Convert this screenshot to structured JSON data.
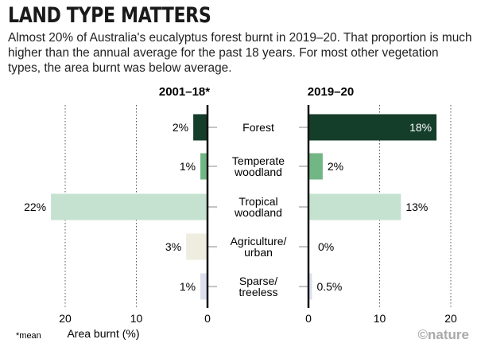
{
  "chart_data": {
    "type": "bar",
    "title": "LAND TYPE MATTERS",
    "subtitle": "Almost 20% of Australia's eucalyptus forest burnt in 2019–20. That proportion is much higher than the annual average for the past 18 years. For most other vegetation types, the area burnt was below average.",
    "categories": [
      [
        "Forest"
      ],
      [
        "Temperate",
        "woodland"
      ],
      [
        "Tropical",
        "woodland"
      ],
      [
        "Agriculture/",
        "urban"
      ],
      [
        "Sparse/",
        "treeless"
      ]
    ],
    "colors": [
      "#143d2a",
      "#72b685",
      "#c5e2d0",
      "#eeede0",
      "#dcdfee"
    ],
    "series": [
      {
        "name": "2001–18*",
        "values": [
          2,
          1,
          22,
          3,
          1
        ],
        "labels": [
          "2%",
          "1%",
          "22%",
          "3%",
          "1%"
        ],
        "direction": "left"
      },
      {
        "name": "2019–20",
        "values": [
          18,
          2,
          13,
          0,
          0.5
        ],
        "labels": [
          "18%",
          "2%",
          "13%",
          "0%",
          "0.5%"
        ],
        "direction": "right"
      }
    ],
    "xlabel": "Area burnt (%)",
    "xlim": [
      0,
      22
    ],
    "ticks": [
      0,
      10,
      20
    ],
    "grid": "dotted vertical at 10 and 20",
    "footnote": "*mean",
    "credit": "©nature"
  }
}
